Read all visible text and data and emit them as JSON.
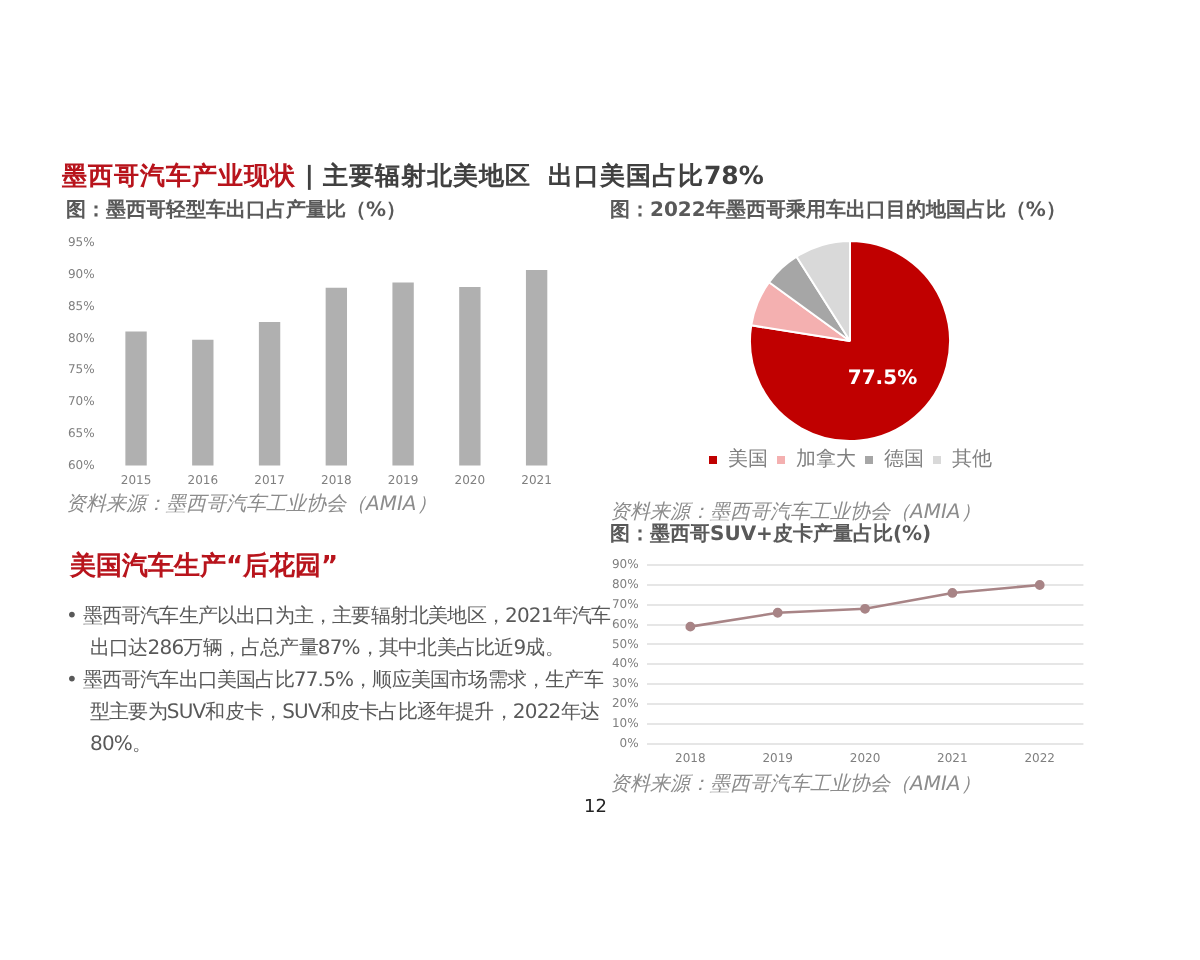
{
  "chart_data": [
    {
      "type": "other",
      "title": "墨西哥汽车产业现状 | 主要辐射北美地区  出口美国占比78%",
      "annotations": [
        "12"
      ]
    },
    {
      "type": "bar",
      "title": "图：墨西哥轻型车出口占产量比（%）",
      "categories": [
        "2015",
        "2016",
        "2017",
        "2018",
        "2019",
        "2020",
        "2021"
      ],
      "values": [
        81.1,
        79.8,
        82.6,
        88,
        88.8,
        88.1,
        90.8
      ],
      "color": "#b0b0b0",
      "ylim": [
        60,
        95
      ],
      "yticks": [
        {
          "value": 60,
          "label": "60%"
        },
        {
          "value": 65,
          "label": "65%"
        },
        {
          "value": 70,
          "label": "70%"
        },
        {
          "value": 75,
          "label": "75%"
        },
        {
          "value": 80,
          "label": "80%"
        },
        {
          "value": 85,
          "label": "85%"
        },
        {
          "value": 90,
          "label": "90%"
        },
        {
          "value": 95,
          "label": "95%"
        }
      ],
      "annotations": [
        "资料来源：墨西哥汽车工业协会（AMIA）"
      ]
    },
    {
      "type": "pie",
      "title": "图：2022年墨西哥乘用车出口目的地国占比（%）",
      "categories": [
        "美国",
        "加拿大",
        "德国",
        "其他"
      ],
      "values": [
        77.5,
        7.5,
        6,
        9
      ],
      "colors": [
        "#c00000",
        "#f4b0b0",
        "#a6a6a6",
        "#d9d9d9"
      ],
      "value_labels": [
        "77.5%",
        null,
        null,
        null
      ],
      "legend": "bottom",
      "annotations": [
        "资料来源：墨西哥汽车工业协会（AMIA）"
      ]
    },
    {
      "type": "other",
      "title": "美国汽车生产“后花园”",
      "annotations": [
        "• 墨西哥汽车生产以出口为主，主要辐射北美地区，2021年汽车出口达286万辆，占总产量87%，其中北美占比近9成。",
        "• 墨西哥汽车出口美国占比77.5%，顺应美国市场需求，生产车型主要为SUV和皮卡，SUV和皮卡占比逐年提升，2022年达80%。"
      ]
    },
    {
      "type": "line",
      "title": "图：墨西哥SUV+皮卡产量占比(%)",
      "categories": [
        "2018",
        "2019",
        "2020",
        "2021",
        "2022"
      ],
      "values": [
        59,
        66,
        68,
        76,
        80
      ],
      "color": "#a88486",
      "marker": "circle",
      "ylim": [
        0,
        90
      ],
      "yticks": [
        {
          "value": 0,
          "label": "0%"
        },
        {
          "value": 10,
          "label": "10%"
        },
        {
          "value": 20,
          "label": "20%"
        },
        {
          "value": 30,
          "label": "30%"
        },
        {
          "value": 40,
          "label": "40%"
        },
        {
          "value": 50,
          "label": "50%"
        },
        {
          "value": 60,
          "label": "60%"
        },
        {
          "value": 70,
          "label": "70%"
        },
        {
          "value": 80,
          "label": "80%"
        },
        {
          "value": 90,
          "label": "90%"
        }
      ],
      "grid": "y",
      "annotations": [
        "资料来源：墨西哥汽车工业协会（AMIA）"
      ]
    }
  ]
}
